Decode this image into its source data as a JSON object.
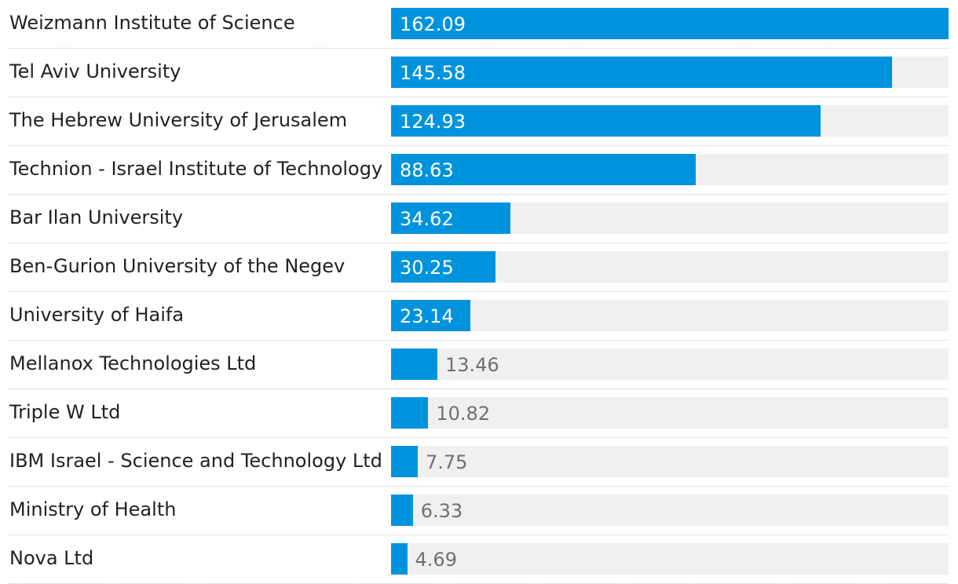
{
  "chart_data": {
    "type": "bar",
    "orientation": "horizontal",
    "categories": [
      "Weizmann Institute of Science",
      "Tel Aviv University",
      "The Hebrew University of Jerusalem",
      "Technion - Israel Institute of Technology",
      "Bar Ilan University",
      "Ben-Gurion University of the Negev",
      "University of Haifa",
      "Mellanox Technologies Ltd",
      "Triple W Ltd",
      "IBM Israel - Science and Technology Ltd",
      "Ministry of Health",
      "Nova Ltd"
    ],
    "values": [
      162.09,
      145.58,
      124.93,
      88.63,
      34.62,
      30.25,
      23.14,
      13.46,
      10.82,
      7.75,
      6.33,
      4.69
    ],
    "value_labels": [
      "162.09",
      "145.58",
      "124.93",
      "88.63",
      "34.62",
      "30.25",
      "23.14",
      "13.46",
      "10.82",
      "7.75",
      "6.33",
      "4.69"
    ],
    "xlim": [
      0,
      162.09
    ],
    "title": "",
    "xlabel": "",
    "ylabel": "",
    "grid": false
  },
  "colors": {
    "bar": "#0093dd",
    "track": "#f0f0f0",
    "label_text": "#222222",
    "value_inside": "#ffffff",
    "value_outside": "#707070"
  }
}
